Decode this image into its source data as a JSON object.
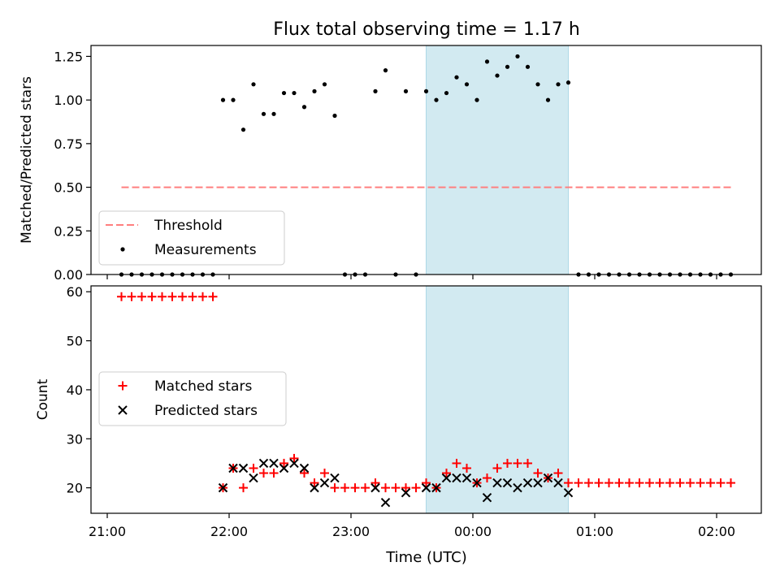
{
  "chart_data": {
    "type": "scatter",
    "title": "Flux total observing time = 1.17 h",
    "xlabel": "Time (UTC)",
    "x_ticks": [
      "21:00",
      "22:00",
      "23:00",
      "00:00",
      "01:00",
      "02:00"
    ],
    "x_range": [
      "20:52",
      "02:22"
    ],
    "highlight_span": {
      "start": "23:37",
      "end": "00:47",
      "color": "#add8e6"
    },
    "colors": {
      "threshold": "#ff7f7f",
      "matched": "#ff0000",
      "predicted": "#000000",
      "measurements": "#000000"
    },
    "panels": [
      {
        "id": "ratio",
        "ylabel": "Matched/Predicted stars",
        "ylim": [
          0,
          1.3125
        ],
        "y_ticks": [
          "0.00",
          "0.25",
          "0.50",
          "0.75",
          "1.00",
          "1.25"
        ],
        "legend": {
          "placement": "lower-left",
          "entries": [
            "Threshold",
            "Measurements"
          ]
        },
        "series": [
          {
            "name": "Threshold",
            "kind": "dashed-line",
            "x": [
              "21:07",
              "02:07"
            ],
            "y": [
              0.5,
              0.5
            ]
          },
          {
            "name": "Measurements",
            "kind": "dots",
            "x": [
              "21:07",
              "21:12",
              "21:17",
              "21:22",
              "21:27",
              "21:32",
              "21:37",
              "21:42",
              "21:47",
              "21:52",
              "21:57",
              "22:02",
              "22:07",
              "22:12",
              "22:17",
              "22:22",
              "22:27",
              "22:32",
              "22:37",
              "22:42",
              "22:47",
              "22:52",
              "22:57",
              "23:02",
              "23:07",
              "23:12",
              "23:17",
              "23:22",
              "23:27",
              "23:32",
              "23:37",
              "23:42",
              "23:47",
              "23:52",
              "23:57",
              "00:02",
              "00:07",
              "00:12",
              "00:17",
              "00:22",
              "00:27",
              "00:32",
              "00:37",
              "00:42",
              "00:47",
              "00:52",
              "00:57",
              "01:02",
              "01:07",
              "01:12",
              "01:17",
              "01:22",
              "01:27",
              "01:32",
              "01:37",
              "01:42",
              "01:47",
              "01:52",
              "01:57",
              "02:02",
              "02:07"
            ],
            "y": [
              0,
              0,
              0,
              0,
              0,
              0,
              0,
              0,
              0,
              0,
              1.0,
              1.0,
              0.83,
              1.09,
              0.92,
              0.92,
              1.04,
              1.04,
              0.96,
              1.05,
              1.09,
              0.91,
              0,
              0,
              0,
              1.05,
              1.17,
              0,
              1.05,
              0,
              1.05,
              1.0,
              1.04,
              1.13,
              1.09,
              1.0,
              1.22,
              1.14,
              1.19,
              1.25,
              1.19,
              1.09,
              1.0,
              1.09,
              1.1,
              0,
              0,
              0,
              0,
              0,
              0,
              0,
              0,
              0,
              0,
              0,
              0,
              0,
              0,
              0,
              0
            ]
          }
        ]
      },
      {
        "id": "counts",
        "ylabel": "Count",
        "ylim": [
          14.8,
          61.2
        ],
        "y_ticks": [
          "20",
          "30",
          "40",
          "50",
          "60"
        ],
        "legend": {
          "placement": "center-left",
          "entries": [
            "Matched stars",
            "Predicted stars"
          ]
        },
        "series": [
          {
            "name": "Matched stars",
            "kind": "plus",
            "x": [
              "21:07",
              "21:12",
              "21:17",
              "21:22",
              "21:27",
              "21:32",
              "21:37",
              "21:42",
              "21:47",
              "21:52",
              "21:57",
              "22:02",
              "22:07",
              "22:12",
              "22:17",
              "22:22",
              "22:27",
              "22:32",
              "22:37",
              "22:42",
              "22:47",
              "22:52",
              "22:57",
              "23:02",
              "23:07",
              "23:12",
              "23:17",
              "23:22",
              "23:27",
              "23:32",
              "23:37",
              "23:42",
              "23:47",
              "23:52",
              "23:57",
              "00:02",
              "00:07",
              "00:12",
              "00:17",
              "00:22",
              "00:27",
              "00:32",
              "00:37",
              "00:42",
              "00:47",
              "00:52",
              "00:57",
              "01:02",
              "01:07",
              "01:12",
              "01:17",
              "01:22",
              "01:27",
              "01:32",
              "01:37",
              "01:42",
              "01:47",
              "01:52",
              "01:57",
              "02:02",
              "02:07"
            ],
            "y": [
              59,
              59,
              59,
              59,
              59,
              59,
              59,
              59,
              59,
              59,
              20,
              24,
              20,
              24,
              23,
              23,
              25,
              26,
              23,
              21,
              23,
              20,
              20,
              20,
              20,
              21,
              20,
              20,
              20,
              20,
              21,
              20,
              23,
              25,
              24,
              21,
              22,
              24,
              25,
              25,
              25,
              23,
              22,
              23,
              21,
              21,
              21,
              21,
              21,
              21,
              21,
              21,
              21,
              21,
              21,
              21,
              21,
              21,
              21,
              21,
              21
            ]
          },
          {
            "name": "Predicted stars",
            "kind": "x",
            "x": [
              "21:57",
              "22:02",
              "22:07",
              "22:12",
              "22:17",
              "22:22",
              "22:27",
              "22:32",
              "22:37",
              "22:42",
              "22:47",
              "22:52",
              "23:12",
              "23:17",
              "23:27",
              "23:37",
              "23:42",
              "23:47",
              "23:52",
              "23:57",
              "00:02",
              "00:07",
              "00:12",
              "00:17",
              "00:22",
              "00:27",
              "00:32",
              "00:37",
              "00:42",
              "00:47"
            ],
            "y": [
              20,
              24,
              24,
              22,
              25,
              25,
              24,
              25,
              24,
              20,
              21,
              22,
              20,
              17,
              19,
              20,
              20,
              22,
              22,
              22,
              21,
              18,
              21,
              21,
              20,
              21,
              21,
              22,
              21,
              19
            ]
          }
        ]
      }
    ]
  }
}
